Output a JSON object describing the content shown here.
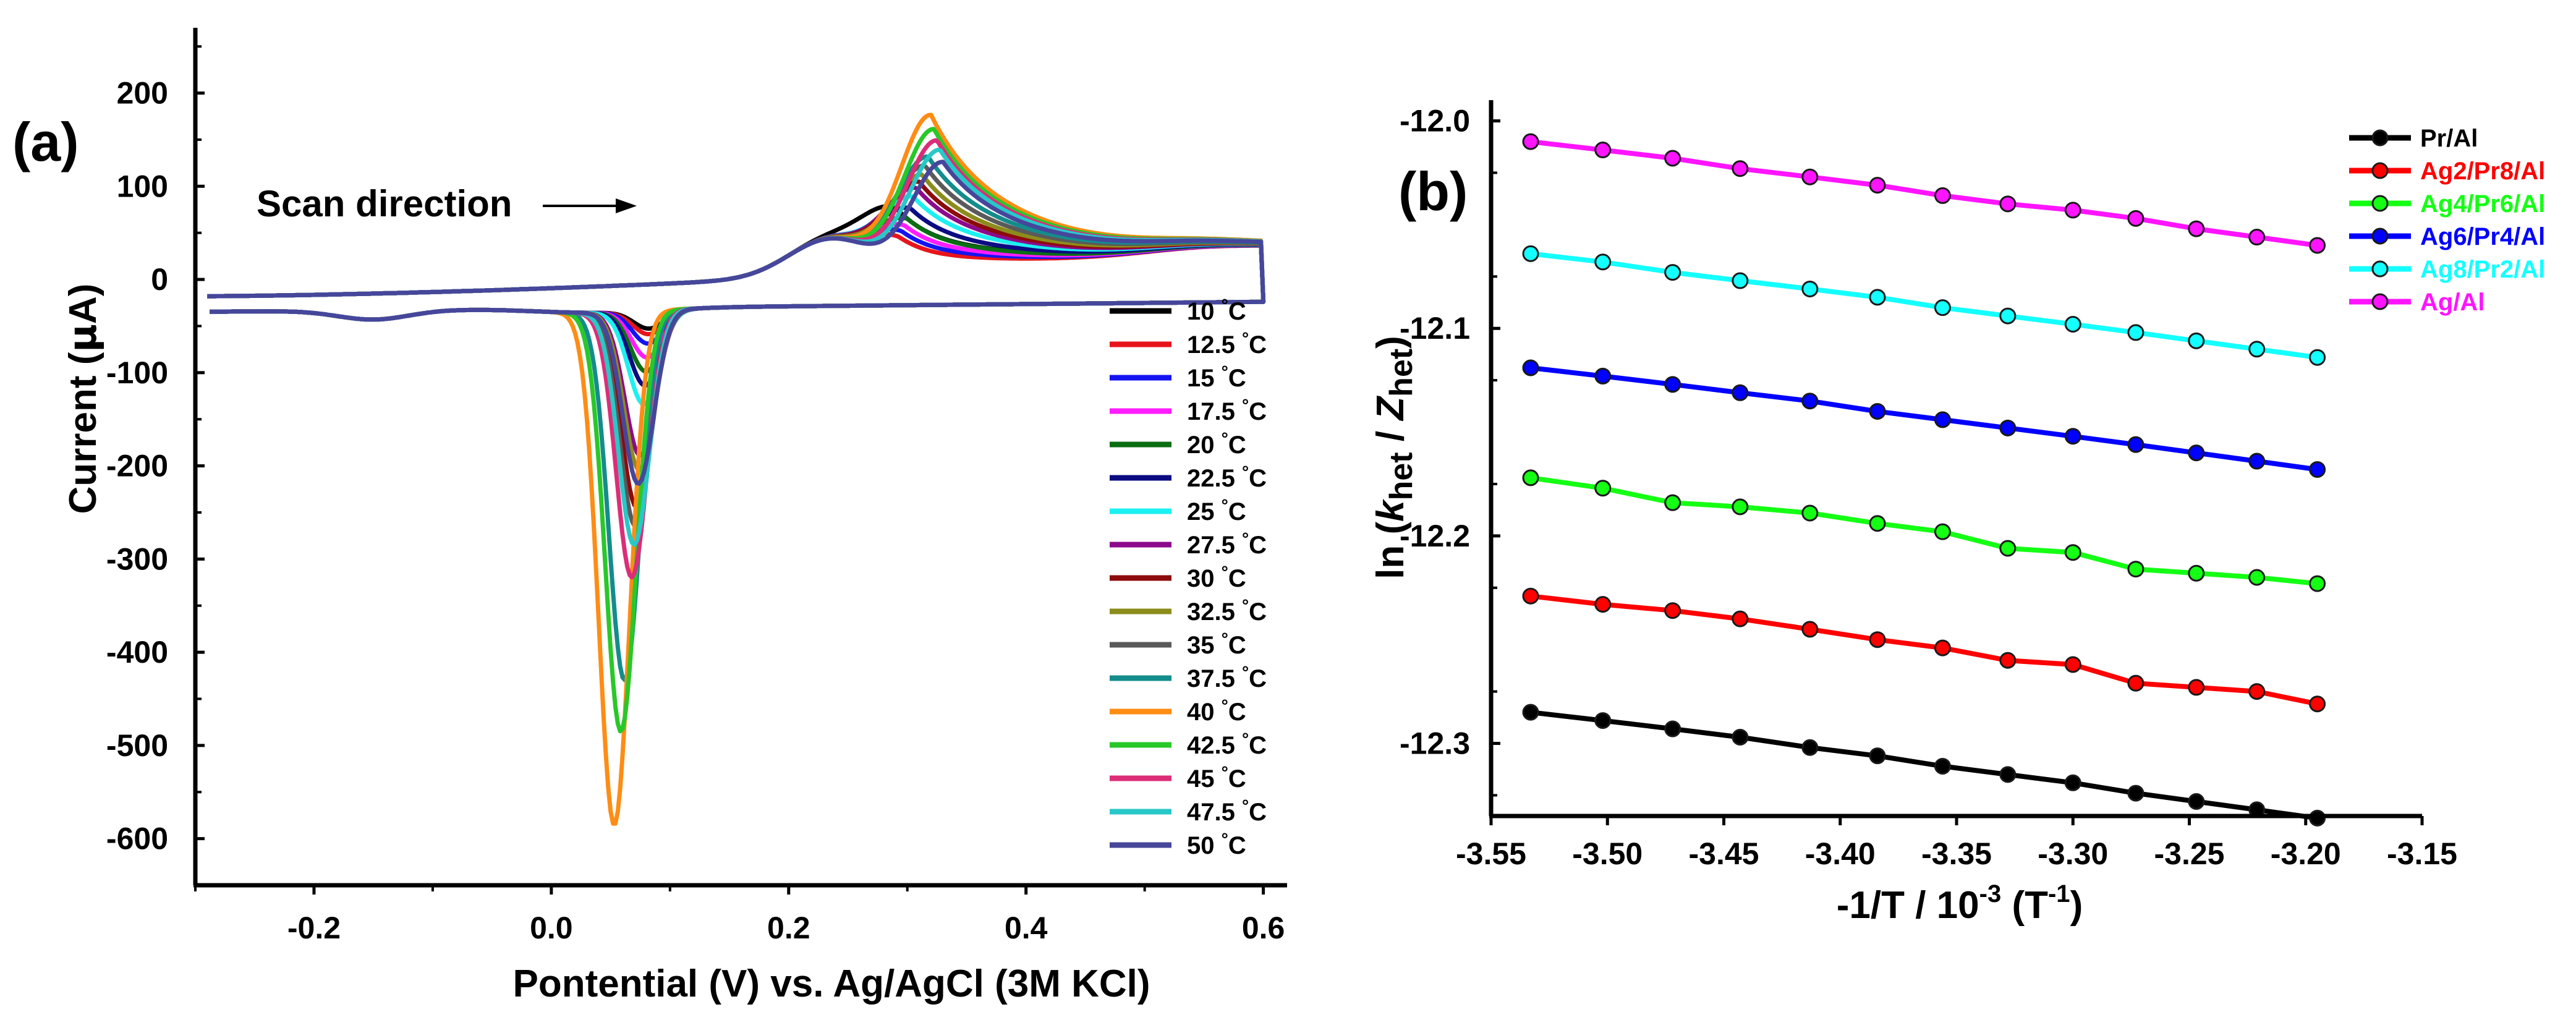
{
  "chart_data": [
    {
      "panel": "(a)",
      "type": "line",
      "title": "",
      "xlabel": "Pontential (V) vs. Ag/AgCl (3M KCl)",
      "ylabel_parts": [
        "Current (",
        "μ",
        "A)"
      ],
      "xlim": [
        -0.3,
        0.62
      ],
      "ylim": [
        -650,
        270
      ],
      "xticks": [
        -0.2,
        0.0,
        0.2,
        0.4,
        0.6
      ],
      "xtick_labels": [
        "-0.2",
        "0.0",
        "0.2",
        "0.4",
        "0.6"
      ],
      "yticks": [
        200,
        100,
        0,
        -100,
        -200,
        -300,
        -400,
        -500,
        -600
      ],
      "ytick_labels": [
        "200",
        "100",
        "0",
        "-100",
        "-200",
        "-300",
        "-400",
        "-500",
        "-600"
      ],
      "annotation": "Scan direction",
      "legend_position": "bottom-right",
      "series": [
        {
          "name": "10 °C",
          "temp_label": "10 ",
          "color": "#000000",
          "cathodic_peak": -44,
          "anodic_peak": 88
        },
        {
          "name": "12.5 °C",
          "temp_label": "12.5 ",
          "color": "#e8141c",
          "cathodic_peak": -50,
          "anodic_peak": 58
        },
        {
          "name": "15 °C",
          "temp_label": "15 ",
          "color": "#1414f0",
          "cathodic_peak": -60,
          "anodic_peak": 65
        },
        {
          "name": "17.5 °C",
          "temp_label": "17.5 ",
          "color": "#ff1cff",
          "cathodic_peak": -75,
          "anodic_peak": 72
        },
        {
          "name": "20 °C",
          "temp_label": "20 ",
          "color": "#0b6e14",
          "cathodic_peak": -90,
          "anodic_peak": 80
        },
        {
          "name": "22.5 °C",
          "temp_label": "22.5 ",
          "color": "#0b0b82",
          "cathodic_peak": -105,
          "anodic_peak": 92
        },
        {
          "name": "25 °C",
          "temp_label": "25 ",
          "color": "#1cf0f0",
          "cathodic_peak": -125,
          "anodic_peak": 105
        },
        {
          "name": "27.5 °C",
          "temp_label": "27.5 ",
          "color": "#8c0b8c",
          "cathodic_peak": -180,
          "anodic_peak": 115
        },
        {
          "name": "30 °C",
          "temp_label": "30 ",
          "color": "#8c0b0b",
          "cathodic_peak": -235,
          "anodic_peak": 122
        },
        {
          "name": "32.5 °C",
          "temp_label": "32.5 ",
          "color": "#8c8c1c",
          "cathodic_peak": -195,
          "anodic_peak": 130
        },
        {
          "name": "35 °C",
          "temp_label": "35 ",
          "color": "#5a5a5a",
          "cathodic_peak": -255,
          "anodic_peak": 140
        },
        {
          "name": "37.5 °C",
          "temp_label": "37.5 ",
          "color": "#148c8c",
          "cathodic_peak": -420,
          "anodic_peak": 150
        },
        {
          "name": "40 °C",
          "temp_label": "40 ",
          "color": "#ff8c14",
          "cathodic_peak": -575,
          "anodic_peak": 195
        },
        {
          "name": "42.5 °C",
          "temp_label": "42.5 ",
          "color": "#28c828",
          "cathodic_peak": -475,
          "anodic_peak": 180
        },
        {
          "name": "45 °C",
          "temp_label": "45 ",
          "color": "#dc2d78",
          "cathodic_peak": -310,
          "anodic_peak": 168
        },
        {
          "name": "47.5 °C",
          "temp_label": "47.5 ",
          "color": "#28c8c8",
          "cathodic_peak": -275,
          "anodic_peak": 158
        },
        {
          "name": "50 °C",
          "temp_label": "50 ",
          "color": "#46469b",
          "cathodic_peak": -210,
          "anodic_peak": 145
        }
      ]
    },
    {
      "panel": "(b)",
      "type": "line",
      "title": "",
      "xlabel": "-1/T / 10⁻³ (T⁻¹)",
      "ylabel": "ln (khet / Zhet)",
      "xlim": [
        -3.55,
        -3.15
      ],
      "ylim": [
        -12.335,
        -11.99
      ],
      "xticks": [
        -3.55,
        -3.5,
        -3.45,
        -3.4,
        -3.35,
        -3.3,
        -3.25,
        -3.2,
        -3.15
      ],
      "xtick_labels": [
        "-3.55",
        "-3.50",
        "-3.45",
        "-3.40",
        "-3.35",
        "-3.30",
        "-3.25",
        "-3.20",
        "-3.15"
      ],
      "yticks": [
        -12.0,
        -12.1,
        -12.2,
        -12.3
      ],
      "ytick_labels": [
        "-12.0",
        "-12.1",
        "-12.2",
        "-12.3"
      ],
      "legend_position": "top-right",
      "x": [
        -3.533,
        -3.502,
        -3.472,
        -3.443,
        -3.413,
        -3.384,
        -3.356,
        -3.328,
        -3.3,
        -3.273,
        -3.247,
        -3.221,
        -3.195
      ],
      "series": [
        {
          "name": "Pr/Al",
          "color": "#000000",
          "values": [
            -12.285,
            -12.289,
            -12.293,
            -12.297,
            -12.302,
            -12.306,
            -12.311,
            -12.315,
            -12.319,
            -12.324,
            -12.328,
            -12.332,
            -12.336
          ]
        },
        {
          "name": "Ag2/Pr8/Al",
          "color": "#ff0000",
          "values": [
            -12.229,
            -12.233,
            -12.236,
            -12.24,
            -12.245,
            -12.25,
            -12.254,
            -12.26,
            -12.262,
            -12.271,
            -12.273,
            -12.275,
            -12.281
          ]
        },
        {
          "name": "Ag4/Pr6/Al",
          "color": "#14ff14",
          "values": [
            -12.172,
            -12.177,
            -12.184,
            -12.186,
            -12.189,
            -12.194,
            -12.198,
            -12.206,
            -12.208,
            -12.216,
            -12.218,
            -12.22,
            -12.223
          ]
        },
        {
          "name": "Ag6/Pr4/Al",
          "color": "#0000ff",
          "values": [
            -12.119,
            -12.123,
            -12.127,
            -12.131,
            -12.135,
            -12.14,
            -12.144,
            -12.148,
            -12.152,
            -12.156,
            -12.16,
            -12.164,
            -12.168
          ]
        },
        {
          "name": "Ag8/Pr2/Al",
          "color": "#14ffff",
          "values": [
            -12.064,
            -12.068,
            -12.073,
            -12.077,
            -12.081,
            -12.085,
            -12.09,
            -12.094,
            -12.098,
            -12.102,
            -12.106,
            -12.11,
            -12.114
          ]
        },
        {
          "name": "Ag/Al",
          "color": "#ff14ff",
          "values": [
            -12.01,
            -12.014,
            -12.018,
            -12.023,
            -12.027,
            -12.031,
            -12.036,
            -12.04,
            -12.043,
            -12.047,
            -12.052,
            -12.056,
            -12.06
          ]
        }
      ]
    }
  ]
}
